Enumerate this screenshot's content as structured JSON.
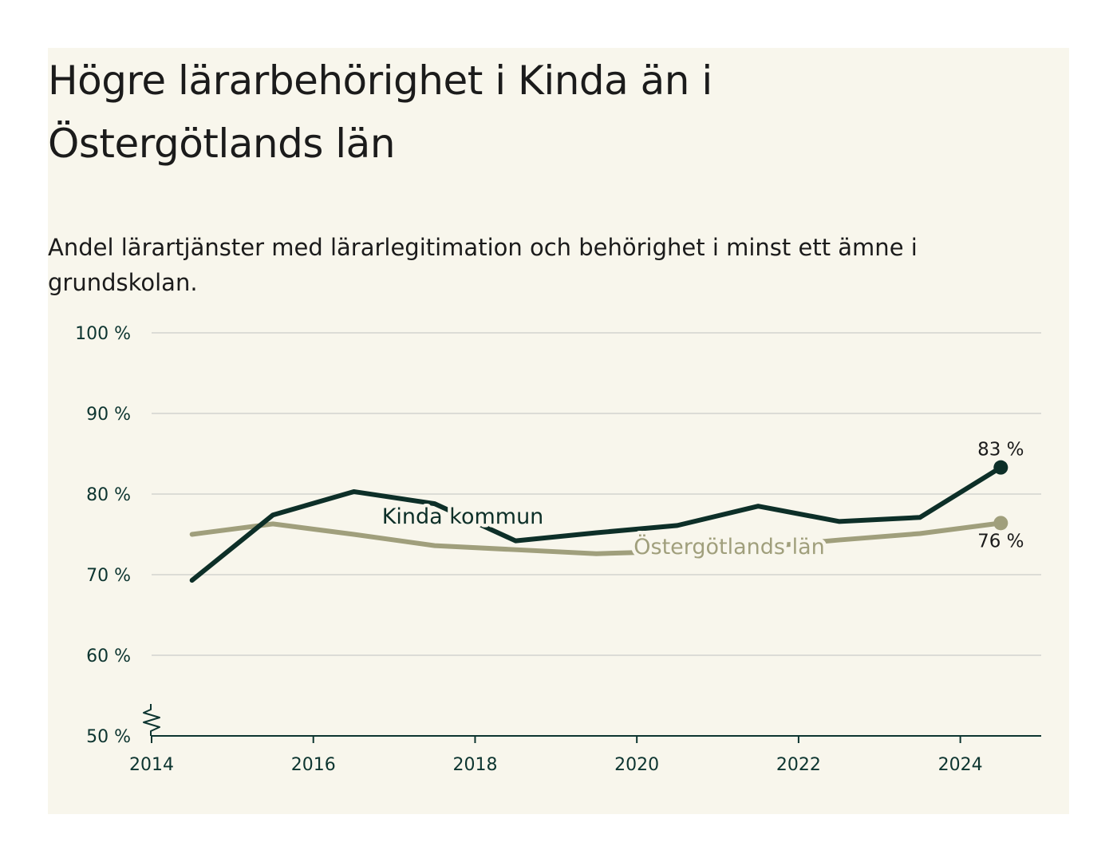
{
  "chart_data": {
    "type": "line",
    "title": "Högre lärarbehörighet i Kinda än i Östergötlands län",
    "subtitle": "Andel lärartjänster med lärarlegitimation och behörighet i minst ett ämne i grundskolan.",
    "xlabel": "",
    "ylabel": "",
    "xlim": [
      2014,
      2025
    ],
    "ylim": [
      50,
      100
    ],
    "x_ticks": [
      2014,
      2016,
      2018,
      2020,
      2022,
      2024
    ],
    "x_tick_labels": [
      "2014",
      "2016",
      "2018",
      "2020",
      "2022",
      "2024"
    ],
    "y_ticks": [
      50,
      60,
      70,
      80,
      90,
      100
    ],
    "y_tick_labels": [
      "50 %",
      "60 %",
      "70 %",
      "80 %",
      "90 %",
      "100 %"
    ],
    "y_axis_break": true,
    "grid": true,
    "x": [
      2014.5,
      2015.5,
      2016.5,
      2017.5,
      2018.5,
      2019.5,
      2020.5,
      2021.5,
      2022.5,
      2023.5,
      2024.5
    ],
    "series": [
      {
        "name": "Kinda kommun",
        "color": "#0d2f28",
        "values": [
          69.3,
          77.4,
          80.3,
          78.8,
          74.2,
          75.2,
          76.1,
          78.5,
          76.6,
          77.1,
          83.3
        ],
        "end_label": "83 %"
      },
      {
        "name": "Östergötlands län",
        "color": "#a09f7c",
        "values": [
          75.0,
          76.3,
          75.0,
          73.6,
          73.1,
          72.6,
          72.9,
          73.4,
          74.3,
          75.1,
          76.4
        ],
        "end_label": "76 %"
      }
    ]
  }
}
